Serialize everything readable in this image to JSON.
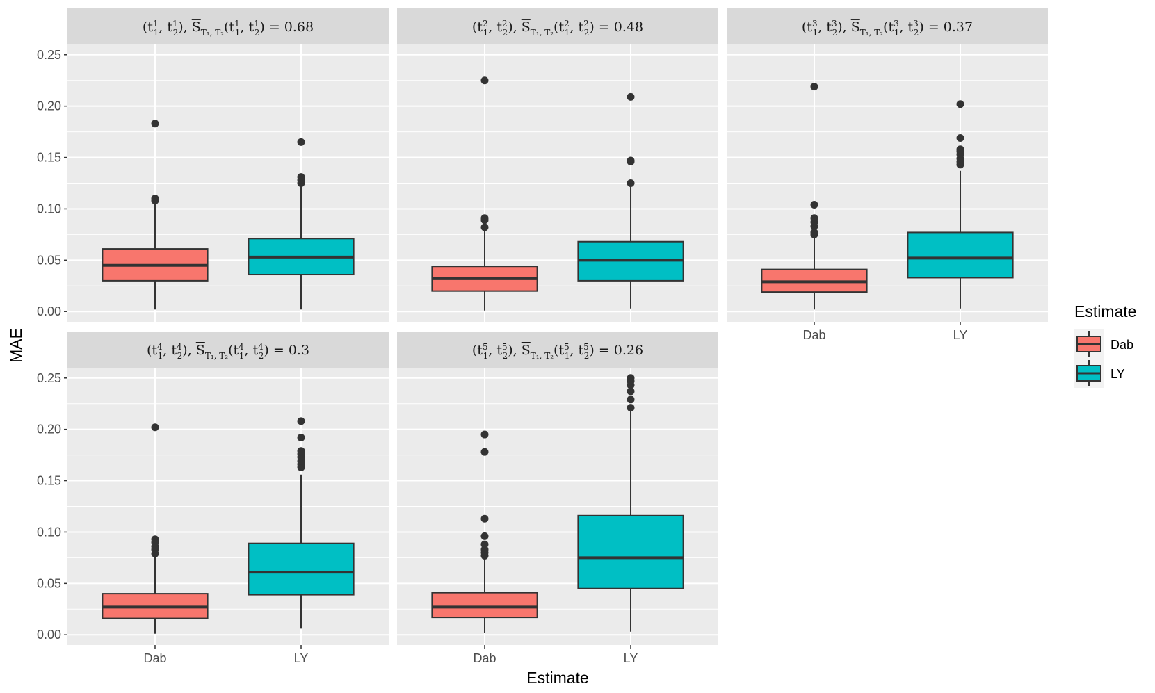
{
  "chart_data": {
    "type": "boxplot",
    "xlabel": "Estimate",
    "ylabel": "MAE",
    "ylim": [
      -0.01,
      0.26
    ],
    "yticks": [
      "0.00",
      "0.05",
      "0.10",
      "0.15",
      "0.20",
      "0.25"
    ],
    "ytick_values": [
      0,
      0.05,
      0.1,
      0.15,
      0.2,
      0.25
    ],
    "categories": [
      "Dab",
      "LY"
    ],
    "colors": {
      "Dab": "#F8766D",
      "LY": "#00BFC4"
    },
    "legend": {
      "title": "Estimate",
      "entries": [
        "Dab",
        "LY"
      ]
    },
    "facets": [
      {
        "idx": "1",
        "value": "0.68",
        "boxes": [
          {
            "cat": "Dab",
            "q1": 0.03,
            "median": 0.045,
            "q3": 0.061,
            "lo": 0.002,
            "hi": 0.107,
            "outliers": [
              0.11,
              0.108,
              0.183
            ]
          },
          {
            "cat": "LY",
            "q1": 0.036,
            "median": 0.053,
            "q3": 0.071,
            "lo": 0.002,
            "hi": 0.122,
            "outliers": [
              0.125,
              0.128,
              0.131,
              0.165
            ]
          }
        ]
      },
      {
        "idx": "2",
        "value": "0.48",
        "boxes": [
          {
            "cat": "Dab",
            "q1": 0.02,
            "median": 0.032,
            "q3": 0.044,
            "lo": 0.001,
            "hi": 0.078,
            "outliers": [
              0.082,
              0.089,
              0.091,
              0.225
            ]
          },
          {
            "cat": "LY",
            "q1": 0.03,
            "median": 0.05,
            "q3": 0.068,
            "lo": 0.003,
            "hi": 0.122,
            "outliers": [
              0.125,
              0.146,
              0.147,
              0.209
            ]
          }
        ]
      },
      {
        "idx": "3",
        "value": "0.37",
        "boxes": [
          {
            "cat": "Dab",
            "q1": 0.019,
            "median": 0.029,
            "q3": 0.041,
            "lo": 0.002,
            "hi": 0.073,
            "outliers": [
              0.075,
              0.077,
              0.083,
              0.087,
              0.091,
              0.104,
              0.219
            ]
          },
          {
            "cat": "LY",
            "q1": 0.033,
            "median": 0.052,
            "q3": 0.077,
            "lo": 0.003,
            "hi": 0.137,
            "outliers": [
              0.143,
              0.146,
              0.149,
              0.153,
              0.156,
              0.158,
              0.169,
              0.202
            ]
          }
        ]
      },
      {
        "idx": "4",
        "value": "0.3",
        "boxes": [
          {
            "cat": "Dab",
            "q1": 0.016,
            "median": 0.027,
            "q3": 0.04,
            "lo": 0.001,
            "hi": 0.077,
            "outliers": [
              0.079,
              0.083,
              0.086,
              0.09,
              0.093,
              0.202
            ]
          },
          {
            "cat": "LY",
            "q1": 0.039,
            "median": 0.061,
            "q3": 0.089,
            "lo": 0.006,
            "hi": 0.156,
            "outliers": [
              0.163,
              0.166,
              0.169,
              0.173,
              0.176,
              0.179,
              0.192,
              0.208
            ]
          }
        ]
      },
      {
        "idx": "5",
        "value": "0.26",
        "boxes": [
          {
            "cat": "Dab",
            "q1": 0.017,
            "median": 0.027,
            "q3": 0.041,
            "lo": 0.002,
            "hi": 0.075,
            "outliers": [
              0.077,
              0.08,
              0.083,
              0.088,
              0.096,
              0.113,
              0.178,
              0.195
            ]
          },
          {
            "cat": "LY",
            "q1": 0.045,
            "median": 0.075,
            "q3": 0.116,
            "lo": 0.003,
            "hi": 0.22,
            "outliers": [
              0.221,
              0.229,
              0.237,
              0.243,
              0.247,
              0.25
            ]
          }
        ]
      }
    ]
  }
}
